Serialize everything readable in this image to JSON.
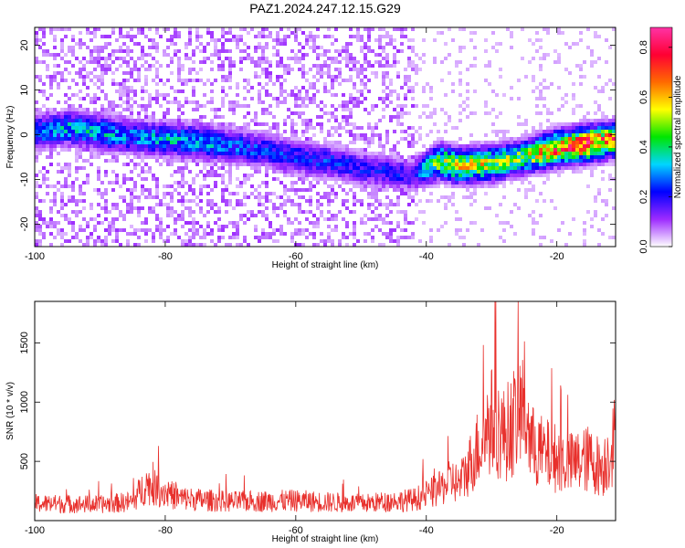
{
  "title": "PAZ1.2024.247.12.15.G29",
  "chart_data": [
    {
      "type": "heatmap",
      "xlabel": "Height of straight line (km)",
      "ylabel": "Frequency (Hz)",
      "xlim": [
        -100,
        -11
      ],
      "ylim": [
        -25,
        24
      ],
      "x_ticks": [
        -100,
        -80,
        -60,
        -40,
        -20
      ],
      "y_ticks": [
        -20,
        -10,
        0,
        10,
        20
      ],
      "colorbar": {
        "label": "Normalized spectral amplitude",
        "range": [
          0.0,
          0.88
        ],
        "ticks": [
          0.0,
          0.2,
          0.4,
          0.6,
          0.8
        ],
        "colors": [
          "#ffffff",
          "#9d2bff",
          "#0000ff",
          "#00d5ff",
          "#00e600",
          "#ffff00",
          "#ff6a00",
          "#ff0033",
          "#ff33a6"
        ]
      },
      "ridge": {
        "x": [
          -100,
          -95,
          -90,
          -85,
          -80,
          -75,
          -70,
          -65,
          -60,
          -55,
          -50,
          -45,
          -42,
          -38,
          -35,
          -30,
          -25,
          -20,
          -15,
          -11
        ],
        "y": [
          0.5,
          1.5,
          0.5,
          -0.5,
          -1,
          -1.5,
          -2.5,
          -3.5,
          -5,
          -6,
          -7.5,
          -8.5,
          -9,
          -6,
          -7,
          -6.5,
          -5,
          -3,
          -2,
          -1
        ],
        "amplitude": [
          0.3,
          0.35,
          0.35,
          0.3,
          0.35,
          0.35,
          0.3,
          0.25,
          0.25,
          0.25,
          0.22,
          0.22,
          0.2,
          0.55,
          0.6,
          0.55,
          0.5,
          0.75,
          0.8,
          0.7
        ]
      }
    },
    {
      "type": "line",
      "xlabel": "Height of straight line (km)",
      "ylabel": "SNR (10 * v/v)",
      "xlim": [
        -100,
        -11
      ],
      "ylim": [
        0,
        1850
      ],
      "x_ticks": [
        -100,
        -80,
        -60,
        -40,
        -20
      ],
      "y_ticks": [
        500,
        1000,
        1500
      ],
      "color": "#e8302c",
      "envelope": {
        "x": [
          -100,
          -90,
          -85,
          -83,
          -80,
          -78,
          -75,
          -70,
          -60,
          -50,
          -42,
          -38,
          -36,
          -35,
          -34,
          -32,
          -30,
          -28,
          -26,
          -25,
          -24,
          -22,
          -20,
          -18,
          -15,
          -13,
          -11
        ],
        "y": [
          180,
          170,
          200,
          380,
          300,
          240,
          220,
          200,
          210,
          180,
          220,
          330,
          430,
          380,
          500,
          780,
          1050,
          900,
          1100,
          1250,
          800,
          700,
          660,
          600,
          650,
          550,
          880
        ]
      }
    }
  ]
}
